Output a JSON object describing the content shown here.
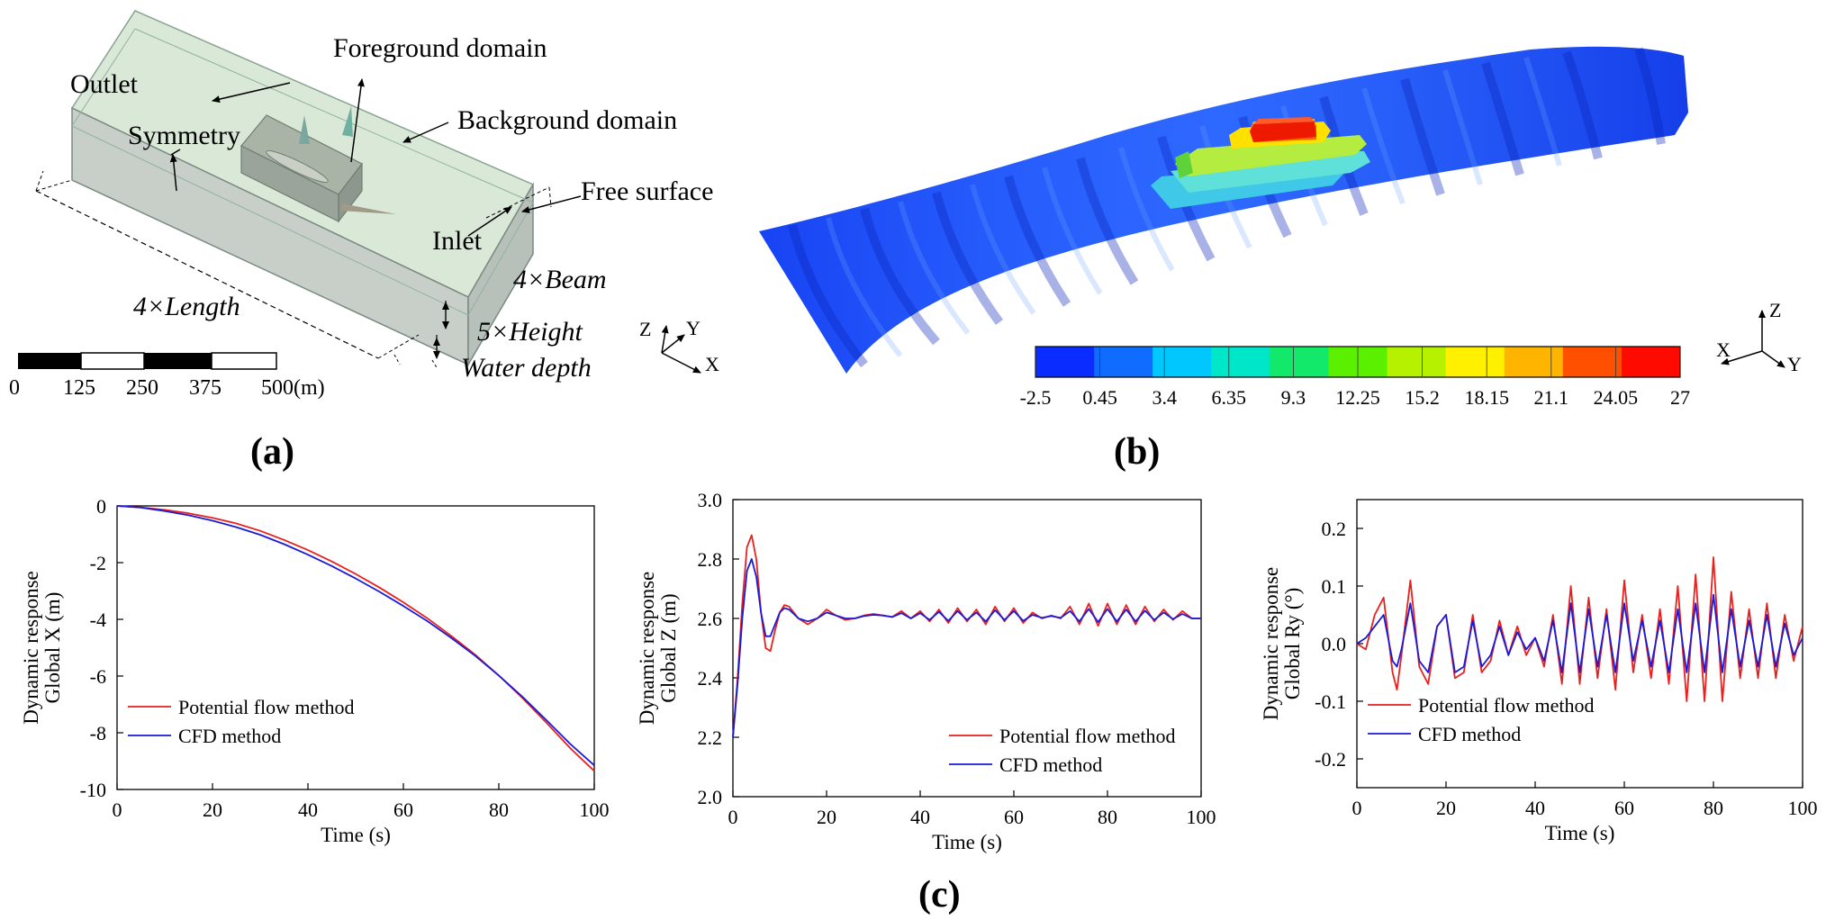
{
  "panel_a": {
    "label": "(a)",
    "annotations": {
      "foreground": "Foreground domain",
      "outlet": "Outlet",
      "symmetry": "Symmetry",
      "background": "Background domain",
      "free_surface": "Free surface",
      "inlet": "Inlet"
    },
    "dims": {
      "beam": "4×Beam",
      "length": "4×Length",
      "height": "5×Height",
      "water_depth": "Water depth"
    },
    "axes": {
      "z": "Z",
      "y": "Y",
      "x": "X"
    },
    "scale_bar": {
      "ticks": [
        "0",
        "125",
        "250",
        "375",
        "500(m)"
      ]
    }
  },
  "panel_b": {
    "label": "(b)",
    "colorbar": {
      "ticks": [
        "-2.5",
        "0.45",
        "3.4",
        "6.35",
        "9.3",
        "12.25",
        "15.2",
        "18.15",
        "21.1",
        "24.05",
        "27"
      ],
      "colors": [
        "#0a2cff",
        "#0f6cff",
        "#00c8ff",
        "#00e6c8",
        "#12e86a",
        "#5af000",
        "#b6f200",
        "#fff000",
        "#ffb400",
        "#ff5000",
        "#ff0a00"
      ]
    },
    "axes": {
      "z": "Z",
      "x": "X",
      "y": "Y"
    }
  },
  "panel_c": {
    "label": "(c)"
  },
  "colors": {
    "potential": "#e8201e",
    "cfd": "#1a1ad8"
  },
  "chart_data": [
    {
      "type": "line",
      "xlabel": "Time (s)",
      "ylabel": "Dynamic response",
      "ylabel2": "Global X (m)",
      "xlim": [
        0,
        100
      ],
      "ylim": [
        -10,
        0
      ],
      "xticks": [
        0,
        20,
        40,
        60,
        80,
        100
      ],
      "yticks": [
        0,
        -2,
        -4,
        -6,
        -8,
        -10
      ],
      "legend": "lower-left",
      "series": [
        {
          "name": "Potential flow method",
          "color": "#e8201e",
          "x": [
            0,
            5,
            10,
            15,
            20,
            25,
            30,
            35,
            40,
            45,
            50,
            55,
            60,
            65,
            70,
            75,
            80,
            85,
            90,
            95,
            100
          ],
          "y": [
            0,
            -0.05,
            -0.14,
            -0.26,
            -0.42,
            -0.62,
            -0.88,
            -1.2,
            -1.56,
            -1.96,
            -2.4,
            -2.88,
            -3.4,
            -3.96,
            -4.58,
            -5.24,
            -5.98,
            -6.78,
            -7.65,
            -8.55,
            -9.35
          ]
        },
        {
          "name": "CFD method",
          "color": "#1a1ad8",
          "x": [
            0,
            5,
            10,
            15,
            20,
            25,
            30,
            35,
            40,
            45,
            50,
            55,
            60,
            65,
            70,
            75,
            80,
            85,
            90,
            95,
            100
          ],
          "y": [
            0,
            -0.06,
            -0.18,
            -0.33,
            -0.52,
            -0.75,
            -1.02,
            -1.35,
            -1.72,
            -2.12,
            -2.56,
            -3.03,
            -3.53,
            -4.06,
            -4.65,
            -5.28,
            -5.98,
            -6.74,
            -7.56,
            -8.4,
            -9.15
          ]
        }
      ]
    },
    {
      "type": "line",
      "xlabel": "Time (s)",
      "ylabel": "Dynamic response",
      "ylabel2": "Global Z (m)",
      "xlim": [
        0,
        100
      ],
      "ylim": [
        2.0,
        3.0
      ],
      "xticks": [
        0,
        20,
        40,
        60,
        80,
        100
      ],
      "yticks": [
        2.0,
        2.2,
        2.4,
        2.6,
        2.8,
        3.0
      ],
      "legend": "lower-right",
      "series": [
        {
          "name": "Potential flow method",
          "color": "#e8201e",
          "x": [
            0,
            1,
            2,
            3,
            4,
            5,
            6,
            7,
            8,
            9,
            10,
            11,
            12,
            13,
            14,
            16,
            18,
            20,
            22,
            24,
            26,
            28,
            30,
            32,
            34,
            36,
            38,
            40,
            42,
            44,
            46,
            48,
            50,
            52,
            54,
            56,
            58,
            60,
            62,
            64,
            66,
            68,
            70,
            72,
            74,
            76,
            78,
            80,
            82,
            84,
            86,
            88,
            90,
            92,
            94,
            96,
            98,
            100
          ],
          "y": [
            2.2,
            2.4,
            2.65,
            2.84,
            2.88,
            2.8,
            2.62,
            2.5,
            2.49,
            2.56,
            2.62,
            2.645,
            2.64,
            2.62,
            2.6,
            2.58,
            2.6,
            2.63,
            2.61,
            2.595,
            2.6,
            2.61,
            2.615,
            2.61,
            2.605,
            2.625,
            2.6,
            2.625,
            2.59,
            2.63,
            2.585,
            2.635,
            2.59,
            2.63,
            2.58,
            2.64,
            2.59,
            2.635,
            2.585,
            2.62,
            2.6,
            2.61,
            2.6,
            2.64,
            2.58,
            2.65,
            2.575,
            2.65,
            2.58,
            2.645,
            2.58,
            2.64,
            2.59,
            2.63,
            2.595,
            2.625,
            2.6,
            2.6
          ]
        },
        {
          "name": "CFD method",
          "color": "#1a1ad8",
          "x": [
            0,
            1,
            2,
            3,
            4,
            5,
            6,
            7,
            8,
            9,
            10,
            11,
            12,
            13,
            14,
            16,
            18,
            20,
            22,
            24,
            26,
            28,
            30,
            32,
            34,
            36,
            38,
            40,
            42,
            44,
            46,
            48,
            50,
            52,
            54,
            56,
            58,
            60,
            62,
            64,
            66,
            68,
            70,
            72,
            74,
            76,
            78,
            80,
            82,
            84,
            86,
            88,
            90,
            92,
            94,
            96,
            98,
            100
          ],
          "y": [
            2.2,
            2.38,
            2.6,
            2.76,
            2.8,
            2.74,
            2.62,
            2.54,
            2.54,
            2.58,
            2.62,
            2.635,
            2.63,
            2.615,
            2.6,
            2.59,
            2.6,
            2.62,
            2.61,
            2.6,
            2.6,
            2.608,
            2.612,
            2.61,
            2.605,
            2.618,
            2.6,
            2.618,
            2.595,
            2.622,
            2.592,
            2.625,
            2.595,
            2.62,
            2.59,
            2.628,
            2.595,
            2.625,
            2.592,
            2.612,
            2.602,
            2.608,
            2.602,
            2.625,
            2.59,
            2.632,
            2.588,
            2.632,
            2.59,
            2.63,
            2.59,
            2.626,
            2.595,
            2.62,
            2.598,
            2.615,
            2.6,
            2.6
          ]
        }
      ]
    },
    {
      "type": "line",
      "xlabel": "Time (s)",
      "ylabel": "Dynamic response",
      "ylabel2": "Global Ry (°)",
      "xlim": [
        0,
        100
      ],
      "ylim": [
        -0.25,
        0.25
      ],
      "xticks": [
        0,
        20,
        40,
        60,
        80,
        100
      ],
      "yticks": [
        0.2,
        0.1,
        0.0,
        -0.1,
        -0.2
      ],
      "legend": "lower-left",
      "series": [
        {
          "name": "Potential flow method",
          "color": "#e8201e",
          "x": [
            0,
            2,
            4,
            6,
            8,
            9,
            10,
            12,
            14,
            16,
            18,
            20,
            22,
            24,
            26,
            28,
            30,
            32,
            34,
            36,
            38,
            40,
            42,
            44,
            46,
            48,
            50,
            52,
            54,
            56,
            58,
            60,
            62,
            64,
            66,
            68,
            70,
            72,
            74,
            76,
            78,
            80,
            82,
            84,
            86,
            88,
            90,
            92,
            94,
            96,
            98,
            100
          ],
          "y": [
            0,
            -0.01,
            0.05,
            0.08,
            -0.05,
            -0.08,
            -0.02,
            0.11,
            -0.04,
            -0.07,
            0.03,
            0.05,
            -0.06,
            -0.05,
            0.05,
            -0.05,
            -0.03,
            0.04,
            -0.02,
            0.03,
            -0.02,
            0.01,
            -0.04,
            0.05,
            -0.07,
            0.1,
            -0.07,
            0.08,
            -0.06,
            0.06,
            -0.08,
            0.11,
            -0.05,
            0.05,
            -0.06,
            0.06,
            -0.07,
            0.1,
            -0.1,
            0.12,
            -0.1,
            0.15,
            -0.1,
            0.09,
            -0.06,
            0.06,
            -0.06,
            0.07,
            -0.06,
            0.05,
            -0.03,
            0.03
          ]
        },
        {
          "name": "CFD method",
          "color": "#1a1ad8",
          "x": [
            0,
            2,
            4,
            6,
            8,
            9,
            10,
            12,
            14,
            16,
            18,
            20,
            22,
            24,
            26,
            28,
            30,
            32,
            34,
            36,
            38,
            40,
            42,
            44,
            46,
            48,
            50,
            52,
            54,
            56,
            58,
            60,
            62,
            64,
            66,
            68,
            70,
            72,
            74,
            76,
            78,
            80,
            82,
            84,
            86,
            88,
            90,
            92,
            94,
            96,
            98,
            100
          ],
          "y": [
            0,
            0.01,
            0.03,
            0.05,
            -0.03,
            -0.04,
            -0.01,
            0.07,
            -0.03,
            -0.05,
            0.03,
            0.05,
            -0.05,
            -0.04,
            0.04,
            -0.04,
            -0.02,
            0.03,
            -0.02,
            0.02,
            -0.01,
            0.01,
            -0.03,
            0.04,
            -0.05,
            0.07,
            -0.05,
            0.06,
            -0.04,
            0.05,
            -0.05,
            0.07,
            -0.03,
            0.04,
            -0.04,
            0.04,
            -0.05,
            0.06,
            -0.05,
            0.07,
            -0.05,
            0.085,
            -0.05,
            0.06,
            -0.04,
            0.04,
            -0.04,
            0.05,
            -0.04,
            0.035,
            -0.02,
            0.01
          ]
        }
      ]
    }
  ]
}
